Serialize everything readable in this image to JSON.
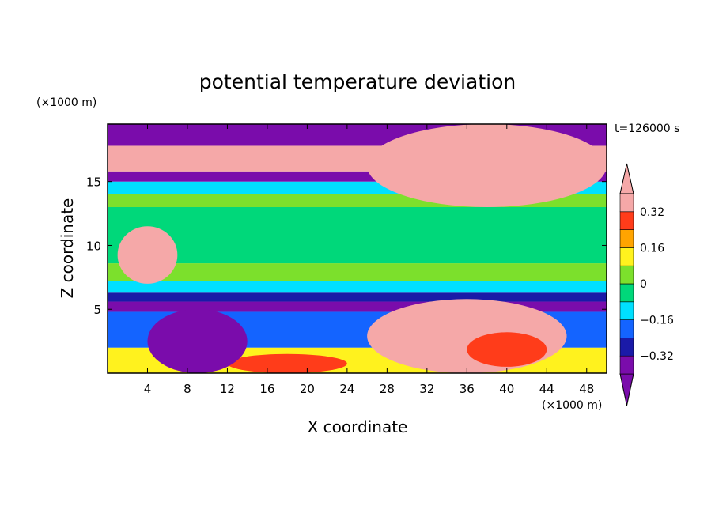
{
  "chart_data": {
    "type": "heatmap",
    "title": "potential temperature deviation",
    "xlabel": "X coordinate",
    "ylabel": "Z coordinate",
    "x_unit": "(×1000 m)",
    "y_unit": "(×1000 m)",
    "time_label": "t=126000 s",
    "xlim": [
      0,
      50
    ],
    "ylim": [
      0,
      19.5
    ],
    "x_ticks": [
      4,
      8,
      12,
      16,
      20,
      24,
      28,
      32,
      36,
      40,
      44,
      48
    ],
    "y_ticks": [
      5,
      10,
      15
    ],
    "colorbar": {
      "levels": [
        -0.4,
        -0.32,
        -0.24,
        -0.16,
        -0.08,
        0,
        0.08,
        0.16,
        0.24,
        0.32,
        0.4
      ],
      "tick_labels": [
        "0.32",
        "0.16",
        "0",
        "−0.16",
        "−0.32"
      ],
      "tick_values": [
        0.32,
        0.16,
        0,
        -0.16,
        -0.32
      ],
      "colors": [
        "#7a0cab",
        "#1a1aa8",
        "#1464ff",
        "#00e0ff",
        "#00d87a",
        "#7ce02c",
        "#fff21e",
        "#ffa400",
        "#ff3c1a",
        "#f5a8a8"
      ],
      "extend": "both"
    },
    "bands_by_height": [
      {
        "z_min": 0.0,
        "z_max": 2.0,
        "value": 0.1
      },
      {
        "z_min": 2.0,
        "z_max": 4.8,
        "value": -0.2
      },
      {
        "z_min": 4.8,
        "z_max": 5.6,
        "value": -0.36
      },
      {
        "z_min": 5.6,
        "z_max": 6.3,
        "value": -0.28
      },
      {
        "z_min": 6.3,
        "z_max": 7.2,
        "value": -0.12
      },
      {
        "z_min": 7.2,
        "z_max": 8.6,
        "value": 0.02
      },
      {
        "z_min": 8.6,
        "z_max": 13.0,
        "value": -0.05
      },
      {
        "z_min": 13.0,
        "z_max": 14.0,
        "value": 0.02
      },
      {
        "z_min": 14.0,
        "z_max": 15.0,
        "value": -0.12
      },
      {
        "z_min": 15.0,
        "z_max": 15.8,
        "value": -0.36
      },
      {
        "z_min": 15.8,
        "z_max": 17.8,
        "value": 0.45
      },
      {
        "z_min": 17.8,
        "z_max": 19.5,
        "value": -0.45
      }
    ],
    "features": [
      {
        "kind": "warm-plume",
        "x": [
          26,
          46
        ],
        "z": [
          0,
          5.8
        ],
        "value": 0.45
      },
      {
        "kind": "warm-core",
        "x": [
          36,
          44
        ],
        "z": [
          0.5,
          3.2
        ],
        "value": 0.3
      },
      {
        "kind": "warm-surface",
        "x": [
          12,
          24
        ],
        "z": [
          0,
          1.5
        ],
        "value": 0.3
      },
      {
        "kind": "cold-pool",
        "x": [
          4,
          14
        ],
        "z": [
          0,
          5
        ],
        "value": -0.42
      },
      {
        "kind": "warm-patch",
        "x": [
          1,
          7
        ],
        "z": [
          7,
          11.5
        ],
        "value": 0.45
      },
      {
        "kind": "warm-upper",
        "x": [
          26,
          50
        ],
        "z": [
          13,
          19.5
        ],
        "value": 0.45
      }
    ]
  }
}
